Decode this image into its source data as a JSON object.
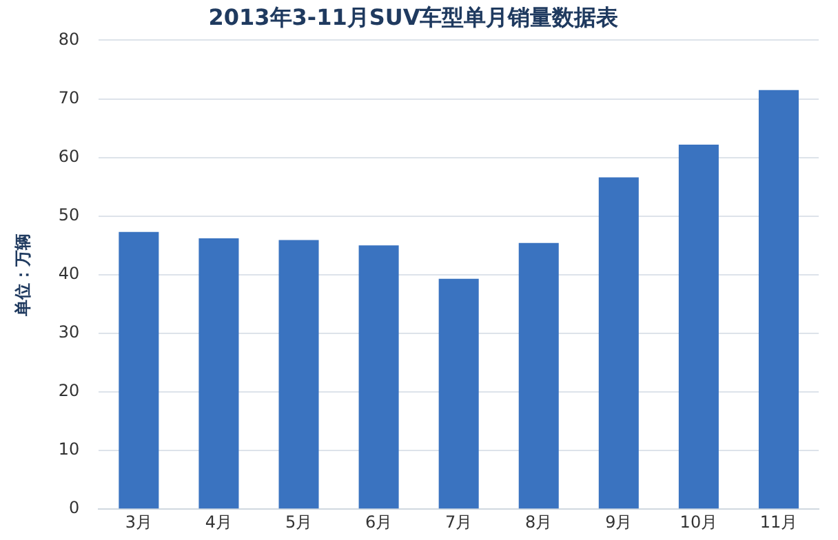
{
  "chart_data": {
    "type": "bar",
    "title": "2013年3-11月SUV车型单月销量数据表",
    "ylabel": "单位：万辆",
    "categories": [
      "3月",
      "4月",
      "5月",
      "6月",
      "7月",
      "8月",
      "9月",
      "10月",
      "11月"
    ],
    "values": [
      47.3,
      46.2,
      45.9,
      45.0,
      39.3,
      45.4,
      56.6,
      62.2,
      71.5
    ],
    "color": "#3a73c0",
    "ylim": [
      0,
      80
    ],
    "yticks": [
      0,
      10,
      20,
      30,
      40,
      50,
      60,
      70,
      80
    ],
    "grid": "y"
  }
}
